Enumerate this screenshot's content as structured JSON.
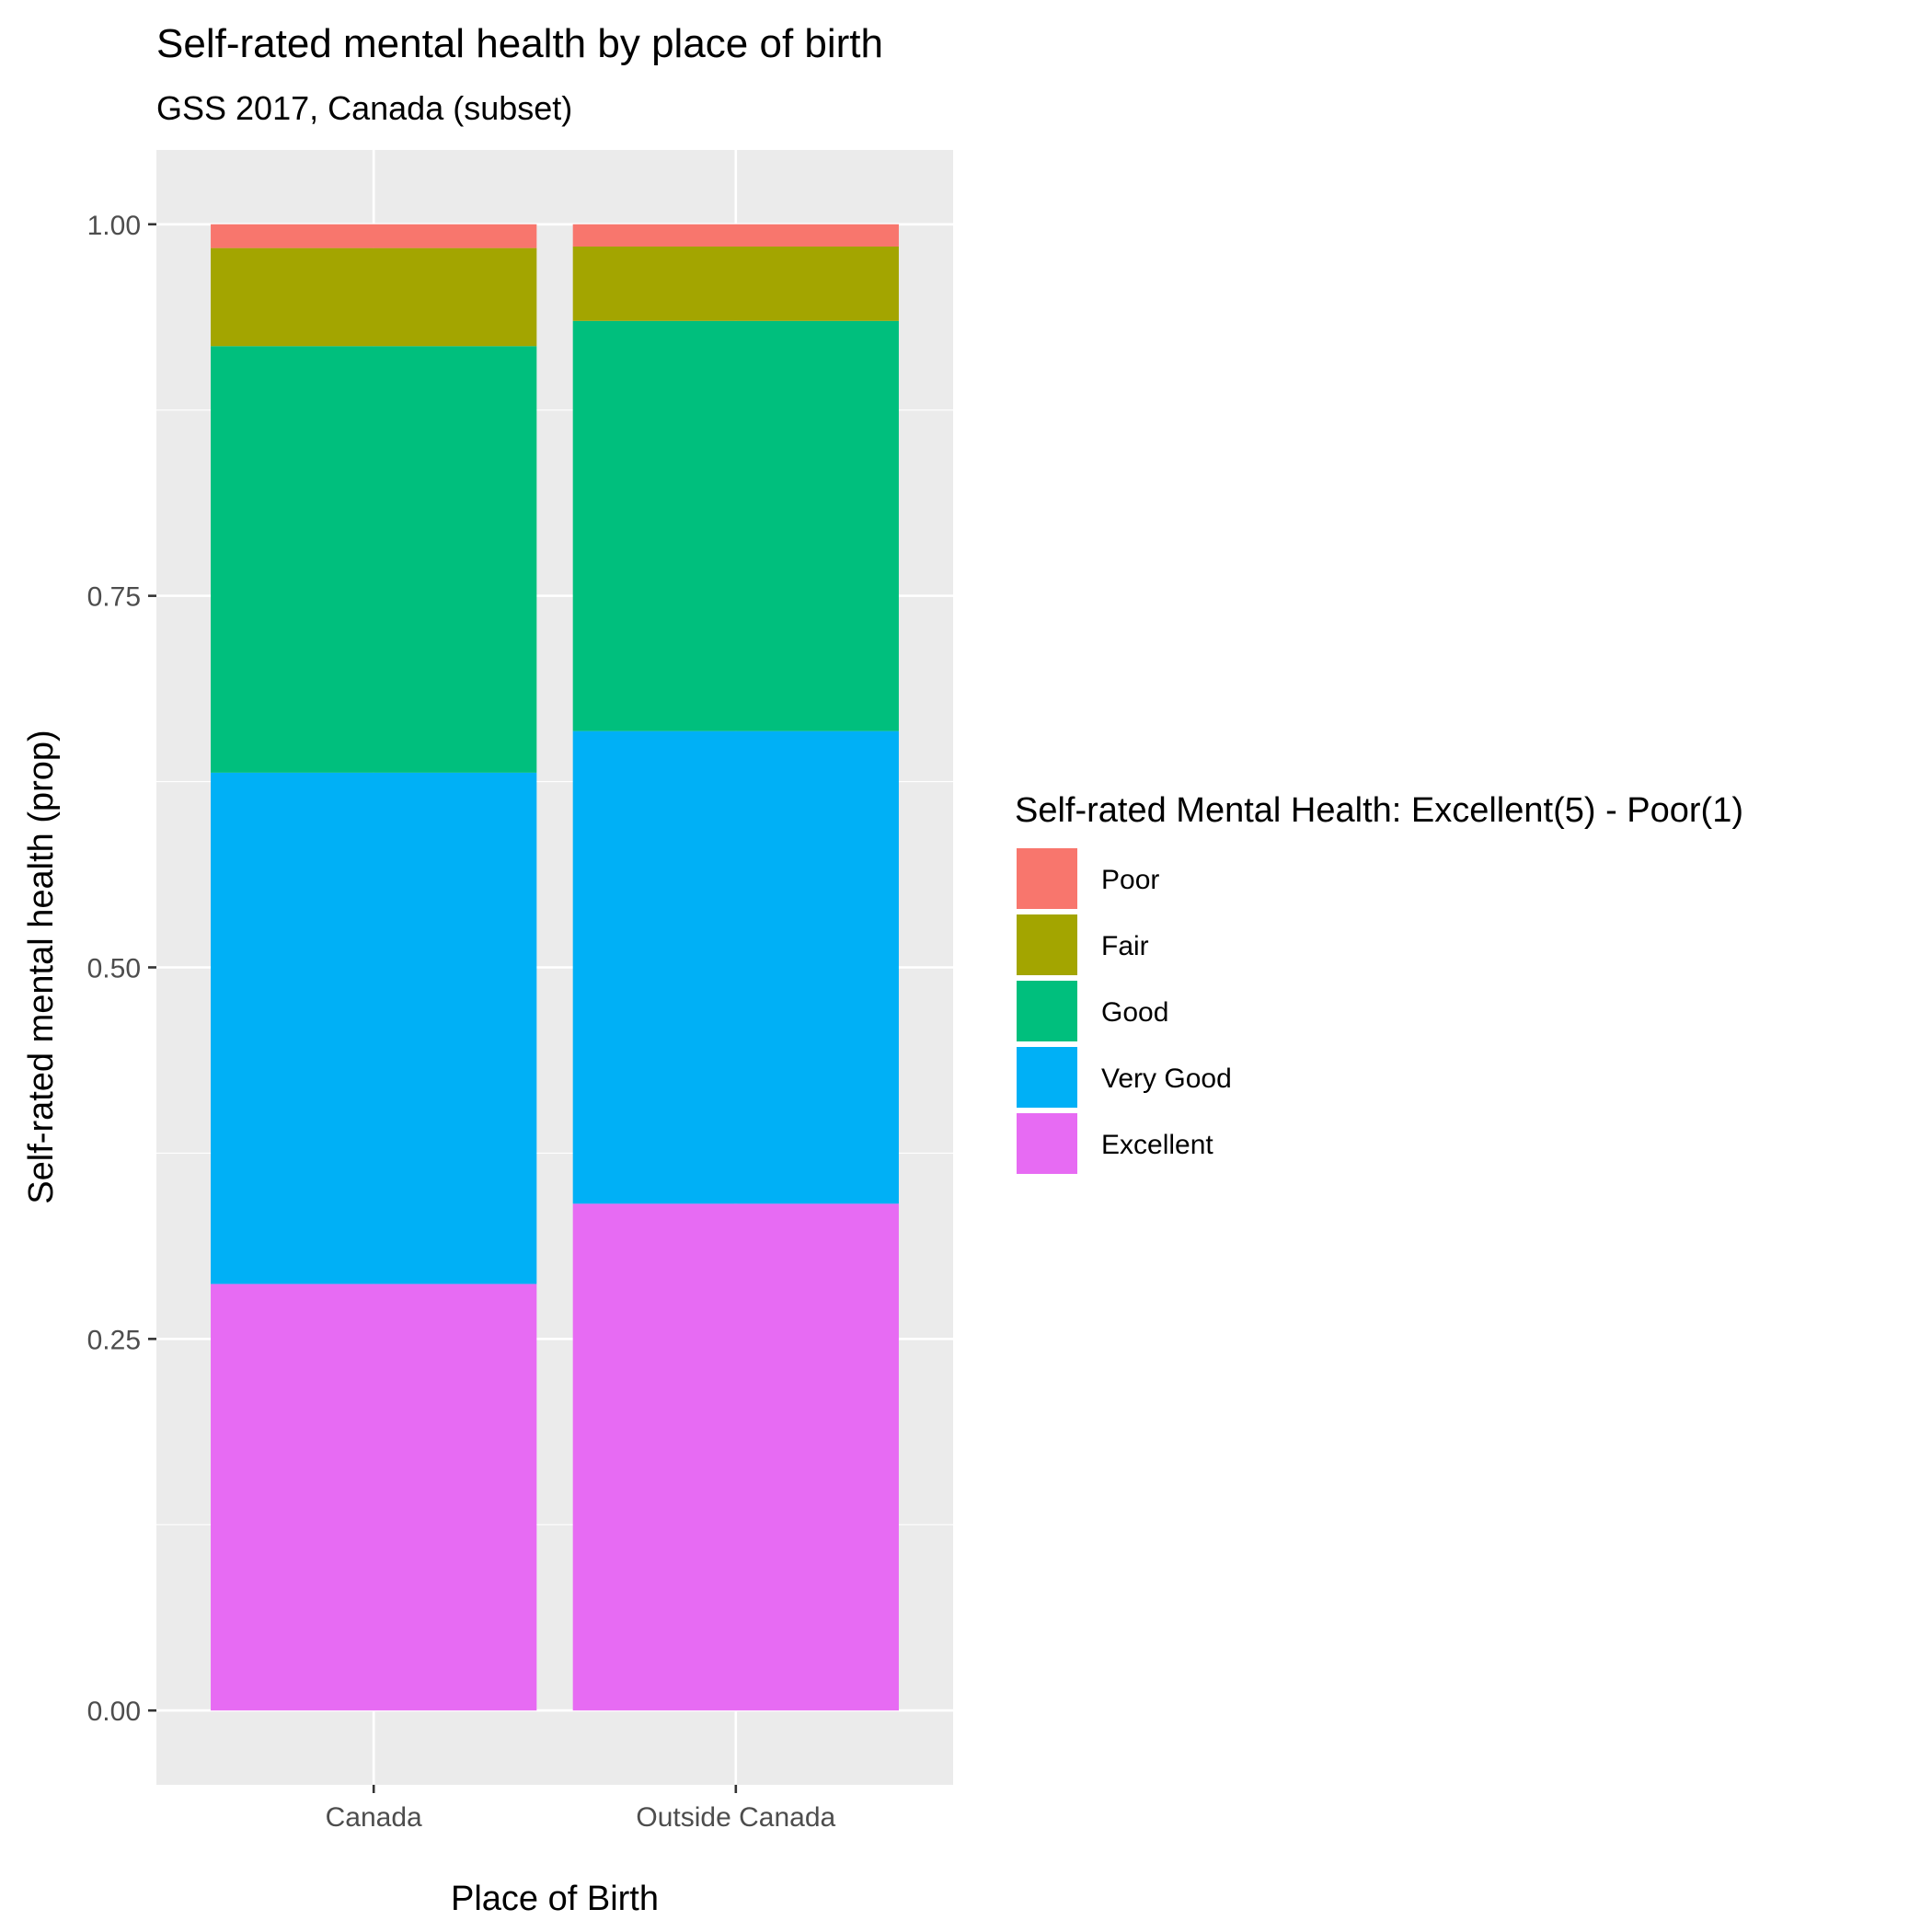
{
  "chart_data": {
    "type": "bar",
    "stacked": true,
    "title": "Self-rated mental health by place of birth",
    "subtitle": "GSS 2017, Canada (subset)",
    "xlabel": "Place of Birth",
    "ylabel": "Self-rated mental health (prop)",
    "ylim": [
      -0.05,
      1.05
    ],
    "yticks": [
      0,
      0.25,
      0.5,
      0.75,
      1
    ],
    "ytick_labels": [
      "0.00",
      "0.25",
      "0.50",
      "0.75",
      "1.00"
    ],
    "categories": [
      "Canada",
      "Outside Canada"
    ],
    "grid": true,
    "legend_position": "right",
    "legend_title": "Self-rated Mental Health: Excellent(5) - Poor(1)",
    "series": [
      {
        "name": "Poor",
        "color": "#F8766D",
        "values": [
          0.016,
          0.015
        ]
      },
      {
        "name": "Fair",
        "color": "#A3A500",
        "values": [
          0.066,
          0.05
        ]
      },
      {
        "name": "Good",
        "color": "#00BF7D",
        "values": [
          0.287,
          0.276
        ]
      },
      {
        "name": "Very Good",
        "color": "#00B0F6",
        "values": [
          0.344,
          0.318
        ]
      },
      {
        "name": "Excellent",
        "color": "#E76BF3",
        "values": [
          0.287,
          0.341
        ]
      }
    ]
  }
}
